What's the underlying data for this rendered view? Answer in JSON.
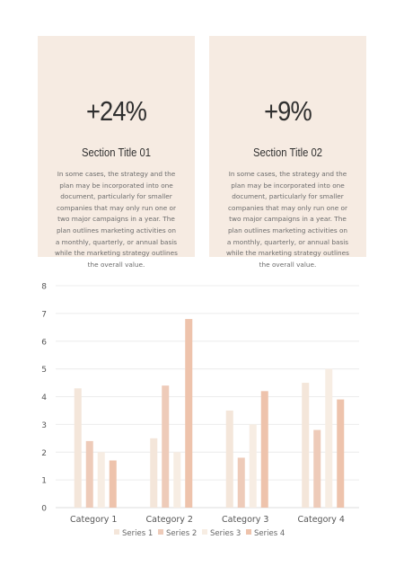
{
  "cards": [
    {
      "stat": "+24%",
      "title": "Section Title 01",
      "body": "In some cases, the strategy and the plan may be incorporated into one document, particularly for smaller companies that may only run one or two major campaigns in a year. The plan outlines marketing activities on a monthly, quarterly, or annual basis while the marketing strategy outlines the overall value."
    },
    {
      "stat": "+9%",
      "title": "Section Title 02",
      "body": "In some cases, the strategy and the plan may be incorporated into one document, particularly for smaller companies that may only run one or two major campaigns in a year. The plan outlines marketing activities on a monthly, quarterly, or annual basis while the marketing strategy outlines the overall value."
    }
  ],
  "chart_data": {
    "type": "bar",
    "categories": [
      "Category 1",
      "Category 2",
      "Category 3",
      "Category 4"
    ],
    "series": [
      {
        "name": "Series 1",
        "color": "#f4e6da",
        "values": [
          4.3,
          2.5,
          3.5,
          4.5
        ]
      },
      {
        "name": "Series 2",
        "color": "#eecbb9",
        "values": [
          2.4,
          4.4,
          1.8,
          2.8
        ]
      },
      {
        "name": "Series 3",
        "color": "#f7ede3",
        "values": [
          2.0,
          2.0,
          3.0,
          5.0
        ]
      },
      {
        "name": "Series 4",
        "color": "#eec3ac",
        "values": [
          1.7,
          6.8,
          4.2,
          3.9
        ]
      }
    ],
    "ylim": [
      0,
      8
    ],
    "yticks": [
      0,
      1,
      2,
      3,
      4,
      5,
      6,
      7,
      8
    ],
    "grid": true,
    "legend": "bottom",
    "title": "",
    "xlabel": "",
    "ylabel": ""
  }
}
